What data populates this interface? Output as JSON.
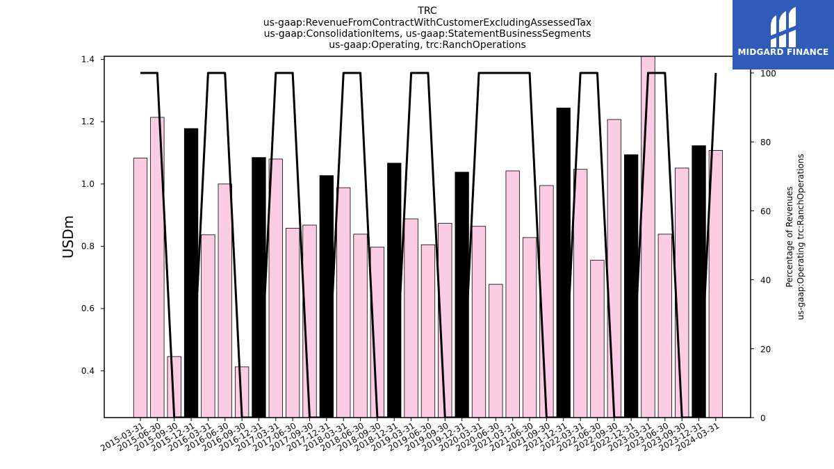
{
  "chart_data": {
    "type": "bar",
    "title": [
      "TRC",
      "us-gaap:RevenueFromContractWithCustomerExcludingAssessedTax",
      "us-gaap:ConsolidationItems, us-gaap:StatementBusinessSegments",
      "us-gaap:Operating, trc:RanchOperations"
    ],
    "ylabel": "USDm",
    "y2label": [
      "Percentage of Revenues",
      "us-gaap:Operating trc:RanchOperations"
    ],
    "ylim": [
      0.25,
      1.41
    ],
    "y2lim": [
      0,
      100
    ],
    "yticks": [
      "0.4",
      "0.6",
      "0.8",
      "1.0",
      "1.2",
      "1.4"
    ],
    "y2ticks": [
      "0",
      "20",
      "40",
      "60",
      "80",
      "100"
    ],
    "categories": [
      "2015-03-31",
      "2015-06-30",
      "2015-09-30",
      "2015-12-31",
      "2016-03-31",
      "2016-06-30",
      "2016-09-30",
      "2016-12-31",
      "2017-03-31",
      "2017-06-30",
      "2017-09-30",
      "2017-12-31",
      "2018-03-31",
      "2018-06-30",
      "2018-09-30",
      "2018-12-31",
      "2019-03-31",
      "2019-06-30",
      "2019-09-30",
      "2019-12-31",
      "2020-03-31",
      "2020-06-30",
      "2021-03-31",
      "2021-06-30",
      "2021-09-30",
      "2021-12-31",
      "2022-03-31",
      "2022-06-30",
      "2022-09-30",
      "2022-12-31",
      "2023-03-31",
      "2023-06-30",
      "2023-09-30",
      "2023-12-31",
      "2024-03-31"
    ],
    "values": [
      1.083,
      1.214,
      0.446,
      1.178,
      0.837,
      1.0,
      0.413,
      1.085,
      1.08,
      0.858,
      0.868,
      1.027,
      0.988,
      0.839,
      0.797,
      1.067,
      0.888,
      0.805,
      0.874,
      1.038,
      0.864,
      0.678,
      1.042,
      0.828,
      0.995,
      1.244,
      1.047,
      0.755,
      1.207,
      1.094,
      1.42,
      0.839,
      1.051,
      1.123,
      1.108
    ],
    "bar_colors": [
      "pink",
      "pink",
      "pink",
      "black",
      "pink",
      "pink",
      "pink",
      "black",
      "pink",
      "pink",
      "pink",
      "black",
      "pink",
      "pink",
      "pink",
      "black",
      "pink",
      "pink",
      "pink",
      "black",
      "pink",
      "pink",
      "pink",
      "pink",
      "pink",
      "black",
      "pink",
      "pink",
      "pink",
      "black",
      "pink",
      "pink",
      "pink",
      "black",
      "pink"
    ],
    "percentage_line": [
      100,
      100,
      0,
      0,
      100,
      100,
      0,
      0,
      100,
      100,
      0,
      0,
      100,
      100,
      0,
      0,
      100,
      100,
      0,
      0,
      100,
      100,
      100,
      100,
      0,
      0,
      100,
      100,
      0,
      0,
      100,
      100,
      0,
      0,
      100
    ],
    "colors": {
      "pink": "#fccce4",
      "black": "#000000",
      "line": "#000000"
    },
    "grid": false
  },
  "logo": {
    "text": "MIDGARD FINANCE",
    "background": "#2e5cb8"
  }
}
